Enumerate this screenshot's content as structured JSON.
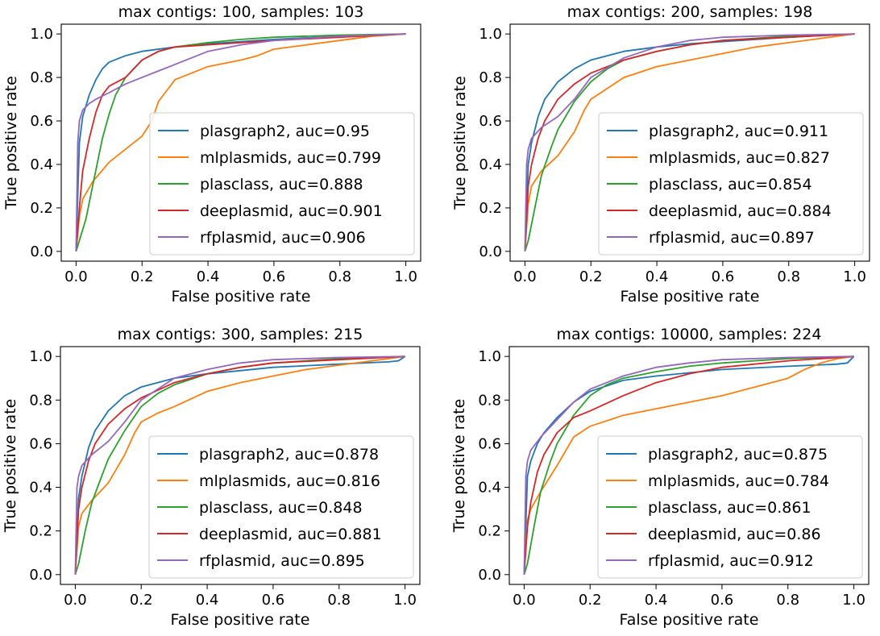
{
  "chart_data": [
    {
      "type": "line",
      "title": "max contigs: 100, samples: 103",
      "xlabel": "False positive rate",
      "ylabel": "True positive rate",
      "xlim": [
        0,
        1
      ],
      "ylim": [
        0,
        1
      ],
      "xticks": [
        "0.0",
        "0.2",
        "0.4",
        "0.6",
        "0.8",
        "1.0"
      ],
      "yticks": [
        "0.0",
        "0.2",
        "0.4",
        "0.6",
        "0.8",
        "1.0"
      ],
      "legend_position": "lower-right",
      "series": [
        {
          "name": "plasgraph2",
          "label": "plasgraph2, auc=0.95",
          "auc": 0.95,
          "color": "#1f77b4",
          "x": [
            0,
            0.01,
            0.02,
            0.04,
            0.06,
            0.08,
            0.1,
            0.15,
            0.2,
            0.3,
            0.4,
            0.5,
            0.6,
            0.8,
            1.0
          ],
          "y": [
            0,
            0.5,
            0.62,
            0.72,
            0.79,
            0.84,
            0.87,
            0.9,
            0.92,
            0.94,
            0.955,
            0.965,
            0.975,
            0.99,
            1.0
          ]
        },
        {
          "name": "mlplasmids",
          "label": "mlplasmids, auc=0.799",
          "auc": 0.799,
          "color": "#ff7f0e",
          "x": [
            0,
            0.01,
            0.02,
            0.05,
            0.1,
            0.15,
            0.2,
            0.23,
            0.25,
            0.27,
            0.3,
            0.4,
            0.5,
            0.55,
            0.6,
            0.7,
            0.8,
            0.9,
            1.0
          ],
          "y": [
            0,
            0.16,
            0.24,
            0.32,
            0.41,
            0.47,
            0.53,
            0.6,
            0.69,
            0.73,
            0.79,
            0.85,
            0.88,
            0.9,
            0.93,
            0.95,
            0.97,
            0.99,
            1.0
          ]
        },
        {
          "name": "plasclass",
          "label": "plasclass, auc=0.888",
          "auc": 0.888,
          "color": "#2ca02c",
          "x": [
            0,
            0.01,
            0.03,
            0.05,
            0.08,
            0.1,
            0.12,
            0.15,
            0.2,
            0.25,
            0.3,
            0.4,
            0.5,
            0.6,
            0.8,
            1.0
          ],
          "y": [
            0,
            0.05,
            0.15,
            0.3,
            0.52,
            0.63,
            0.72,
            0.8,
            0.88,
            0.92,
            0.94,
            0.96,
            0.975,
            0.985,
            0.995,
            1.0
          ]
        },
        {
          "name": "deeplasmid",
          "label": "deeplasmid, auc=0.901",
          "auc": 0.901,
          "color": "#d62728",
          "x": [
            0,
            0.01,
            0.02,
            0.04,
            0.06,
            0.08,
            0.1,
            0.15,
            0.2,
            0.25,
            0.3,
            0.4,
            0.5,
            0.6,
            0.8,
            1.0
          ],
          "y": [
            0,
            0.2,
            0.37,
            0.52,
            0.64,
            0.72,
            0.76,
            0.8,
            0.88,
            0.92,
            0.94,
            0.95,
            0.96,
            0.97,
            0.985,
            1.0
          ]
        },
        {
          "name": "rfplasmid",
          "label": "rfplasmid, auc=0.906",
          "auc": 0.906,
          "color": "#9467bd",
          "x": [
            0,
            0.005,
            0.01,
            0.02,
            0.04,
            0.06,
            0.1,
            0.15,
            0.2,
            0.25,
            0.3,
            0.35,
            0.4,
            0.5,
            0.6,
            0.8,
            1.0
          ],
          "y": [
            0,
            0.5,
            0.6,
            0.65,
            0.68,
            0.7,
            0.73,
            0.77,
            0.8,
            0.83,
            0.86,
            0.89,
            0.92,
            0.95,
            0.97,
            0.99,
            1.0
          ]
        }
      ]
    },
    {
      "type": "line",
      "title": "max contigs: 200, samples: 198",
      "xlabel": "False positive rate",
      "ylabel": "True positive rate",
      "xlim": [
        0,
        1
      ],
      "ylim": [
        0,
        1
      ],
      "xticks": [
        "0.0",
        "0.2",
        "0.4",
        "0.6",
        "0.8",
        "1.0"
      ],
      "yticks": [
        "0.0",
        "0.2",
        "0.4",
        "0.6",
        "0.8",
        "1.0"
      ],
      "legend_position": "lower-right",
      "series": [
        {
          "name": "plasgraph2",
          "label": "plasgraph2, auc=0.911",
          "auc": 0.911,
          "color": "#1f77b4",
          "x": [
            0,
            0.01,
            0.02,
            0.04,
            0.06,
            0.1,
            0.15,
            0.2,
            0.3,
            0.4,
            0.5,
            0.6,
            0.8,
            1.0
          ],
          "y": [
            0,
            0.4,
            0.5,
            0.62,
            0.7,
            0.78,
            0.84,
            0.88,
            0.92,
            0.94,
            0.955,
            0.965,
            0.985,
            1.0
          ]
        },
        {
          "name": "mlplasmids",
          "label": "mlplasmids, auc=0.827",
          "auc": 0.827,
          "color": "#ff7f0e",
          "x": [
            0,
            0.01,
            0.02,
            0.05,
            0.1,
            0.15,
            0.18,
            0.2,
            0.25,
            0.3,
            0.4,
            0.5,
            0.6,
            0.7,
            0.8,
            0.9,
            1.0
          ],
          "y": [
            0,
            0.22,
            0.3,
            0.37,
            0.44,
            0.55,
            0.65,
            0.7,
            0.75,
            0.8,
            0.85,
            0.88,
            0.91,
            0.94,
            0.96,
            0.98,
            1.0
          ]
        },
        {
          "name": "plasclass",
          "label": "plasclass, auc=0.854",
          "auc": 0.854,
          "color": "#2ca02c",
          "x": [
            0,
            0.01,
            0.03,
            0.05,
            0.08,
            0.1,
            0.15,
            0.2,
            0.25,
            0.3,
            0.4,
            0.5,
            0.6,
            0.8,
            1.0
          ],
          "y": [
            0,
            0.05,
            0.2,
            0.35,
            0.48,
            0.56,
            0.69,
            0.78,
            0.84,
            0.88,
            0.92,
            0.95,
            0.97,
            0.99,
            1.0
          ]
        },
        {
          "name": "deeplasmid",
          "label": "deeplasmid, auc=0.884",
          "auc": 0.884,
          "color": "#d62728",
          "x": [
            0,
            0.01,
            0.02,
            0.04,
            0.06,
            0.1,
            0.15,
            0.2,
            0.3,
            0.4,
            0.5,
            0.6,
            0.8,
            1.0
          ],
          "y": [
            0,
            0.3,
            0.4,
            0.52,
            0.6,
            0.7,
            0.77,
            0.82,
            0.88,
            0.92,
            0.95,
            0.97,
            0.985,
            1.0
          ]
        },
        {
          "name": "rfplasmid",
          "label": "rfplasmid, auc=0.897",
          "auc": 0.897,
          "color": "#9467bd",
          "x": [
            0,
            0.005,
            0.01,
            0.02,
            0.05,
            0.1,
            0.15,
            0.2,
            0.3,
            0.4,
            0.5,
            0.6,
            0.8,
            1.0
          ],
          "y": [
            0,
            0.4,
            0.47,
            0.52,
            0.57,
            0.62,
            0.7,
            0.8,
            0.89,
            0.94,
            0.97,
            0.985,
            0.995,
            1.0
          ]
        }
      ]
    },
    {
      "type": "line",
      "title": "max contigs: 300, samples: 215",
      "xlabel": "False positive rate",
      "ylabel": "True positive rate",
      "xlim": [
        0,
        1
      ],
      "ylim": [
        0,
        1
      ],
      "xticks": [
        "0.0",
        "0.2",
        "0.4",
        "0.6",
        "0.8",
        "1.0"
      ],
      "yticks": [
        "0.0",
        "0.2",
        "0.4",
        "0.6",
        "0.8",
        "1.0"
      ],
      "legend_position": "lower-right",
      "series": [
        {
          "name": "plasgraph2",
          "label": "plasgraph2, auc=0.878",
          "auc": 0.878,
          "color": "#1f77b4",
          "x": [
            0,
            0.01,
            0.02,
            0.04,
            0.06,
            0.1,
            0.15,
            0.2,
            0.3,
            0.4,
            0.5,
            0.6,
            0.8,
            0.95,
            0.98,
            1.0
          ],
          "y": [
            0,
            0.35,
            0.45,
            0.58,
            0.66,
            0.75,
            0.82,
            0.86,
            0.9,
            0.92,
            0.935,
            0.95,
            0.965,
            0.975,
            0.98,
            1.0
          ]
        },
        {
          "name": "mlplasmids",
          "label": "mlplasmids, auc=0.816",
          "auc": 0.816,
          "color": "#ff7f0e",
          "x": [
            0,
            0.01,
            0.02,
            0.05,
            0.1,
            0.15,
            0.18,
            0.2,
            0.25,
            0.3,
            0.4,
            0.5,
            0.6,
            0.7,
            0.8,
            0.9,
            1.0
          ],
          "y": [
            0,
            0.22,
            0.28,
            0.34,
            0.42,
            0.55,
            0.65,
            0.7,
            0.74,
            0.77,
            0.84,
            0.88,
            0.91,
            0.94,
            0.96,
            0.98,
            1.0
          ]
        },
        {
          "name": "plasclass",
          "label": "plasclass, auc=0.848",
          "auc": 0.848,
          "color": "#2ca02c",
          "x": [
            0,
            0.01,
            0.03,
            0.05,
            0.08,
            0.1,
            0.15,
            0.2,
            0.25,
            0.3,
            0.4,
            0.5,
            0.6,
            0.8,
            1.0
          ],
          "y": [
            0,
            0.05,
            0.2,
            0.33,
            0.45,
            0.53,
            0.66,
            0.77,
            0.83,
            0.87,
            0.92,
            0.95,
            0.97,
            0.99,
            1.0
          ]
        },
        {
          "name": "deeplasmid",
          "label": "deeplasmid, auc=0.881",
          "auc": 0.881,
          "color": "#d62728",
          "x": [
            0,
            0.01,
            0.02,
            0.04,
            0.06,
            0.1,
            0.15,
            0.2,
            0.3,
            0.4,
            0.5,
            0.6,
            0.8,
            1.0
          ],
          "y": [
            0,
            0.3,
            0.4,
            0.52,
            0.6,
            0.69,
            0.76,
            0.81,
            0.88,
            0.92,
            0.95,
            0.97,
            0.985,
            1.0
          ]
        },
        {
          "name": "rfplasmid",
          "label": "rfplasmid, auc=0.895",
          "auc": 0.895,
          "color": "#9467bd",
          "x": [
            0,
            0.005,
            0.01,
            0.02,
            0.05,
            0.1,
            0.15,
            0.2,
            0.3,
            0.4,
            0.5,
            0.6,
            0.8,
            1.0
          ],
          "y": [
            0,
            0.4,
            0.45,
            0.5,
            0.55,
            0.61,
            0.7,
            0.8,
            0.9,
            0.94,
            0.97,
            0.985,
            0.995,
            1.0
          ]
        }
      ]
    },
    {
      "type": "line",
      "title": "max contigs: 10000, samples: 224",
      "xlabel": "False positive rate",
      "ylabel": "True positive rate",
      "xlim": [
        0,
        1
      ],
      "ylim": [
        0,
        1
      ],
      "xticks": [
        "0.0",
        "0.2",
        "0.4",
        "0.6",
        "0.8",
        "1.0"
      ],
      "yticks": [
        "0.0",
        "0.2",
        "0.4",
        "0.6",
        "0.8",
        "1.0"
      ],
      "legend_position": "lower-right",
      "series": [
        {
          "name": "plasgraph2",
          "label": "plasgraph2, auc=0.875",
          "auc": 0.875,
          "color": "#1f77b4",
          "x": [
            0,
            0.01,
            0.02,
            0.04,
            0.06,
            0.1,
            0.15,
            0.2,
            0.3,
            0.4,
            0.5,
            0.6,
            0.8,
            0.95,
            0.98,
            1.0
          ],
          "y": [
            0,
            0.45,
            0.52,
            0.6,
            0.65,
            0.72,
            0.79,
            0.84,
            0.89,
            0.91,
            0.925,
            0.94,
            0.955,
            0.965,
            0.97,
            1.0
          ]
        },
        {
          "name": "mlplasmids",
          "label": "mlplasmids, auc=0.784",
          "auc": 0.784,
          "color": "#ff7f0e",
          "x": [
            0,
            0.01,
            0.02,
            0.05,
            0.1,
            0.15,
            0.2,
            0.3,
            0.4,
            0.5,
            0.6,
            0.7,
            0.8,
            0.85,
            0.9,
            0.95,
            1.0
          ],
          "y": [
            0,
            0.25,
            0.3,
            0.38,
            0.5,
            0.63,
            0.68,
            0.73,
            0.76,
            0.79,
            0.82,
            0.86,
            0.9,
            0.94,
            0.97,
            0.99,
            1.0
          ]
        },
        {
          "name": "plasclass",
          "label": "plasclass, auc=0.861",
          "auc": 0.861,
          "color": "#2ca02c",
          "x": [
            0,
            0.01,
            0.03,
            0.05,
            0.08,
            0.1,
            0.15,
            0.2,
            0.25,
            0.3,
            0.4,
            0.5,
            0.6,
            0.8,
            1.0
          ],
          "y": [
            0,
            0.05,
            0.22,
            0.38,
            0.52,
            0.6,
            0.73,
            0.82,
            0.87,
            0.9,
            0.93,
            0.955,
            0.97,
            0.99,
            1.0
          ]
        },
        {
          "name": "deeplasmid",
          "label": "deeplasmid, auc=0.86",
          "auc": 0.86,
          "color": "#d62728",
          "x": [
            0,
            0.01,
            0.02,
            0.04,
            0.06,
            0.1,
            0.15,
            0.2,
            0.3,
            0.4,
            0.5,
            0.6,
            0.8,
            1.0
          ],
          "y": [
            0,
            0.22,
            0.33,
            0.47,
            0.55,
            0.65,
            0.72,
            0.75,
            0.82,
            0.88,
            0.92,
            0.95,
            0.98,
            1.0
          ]
        },
        {
          "name": "rfplasmid",
          "label": "rfplasmid, auc=0.912",
          "auc": 0.912,
          "color": "#9467bd",
          "x": [
            0,
            0.005,
            0.01,
            0.02,
            0.05,
            0.1,
            0.15,
            0.2,
            0.3,
            0.4,
            0.5,
            0.6,
            0.8,
            1.0
          ],
          "y": [
            0,
            0.45,
            0.52,
            0.57,
            0.63,
            0.71,
            0.79,
            0.85,
            0.91,
            0.95,
            0.97,
            0.985,
            0.995,
            1.0
          ]
        }
      ]
    }
  ]
}
